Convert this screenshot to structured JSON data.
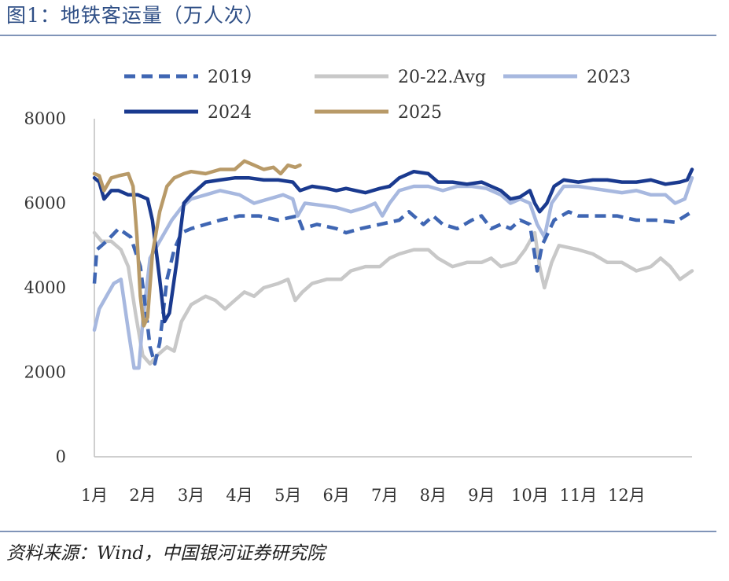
{
  "title": "图1：地铁客运量（万人次）",
  "source": "资料来源：Wind，中国银河证券研究院",
  "chart_data": {
    "type": "line",
    "title": "图1：地铁客运量（万人次）",
    "xlabel": "",
    "ylabel": "",
    "ylim": [
      0,
      8000
    ],
    "yticks": [
      0,
      2000,
      4000,
      6000,
      8000
    ],
    "xlim": [
      1,
      13.35
    ],
    "x_tick_labels": [
      "1月",
      "2月",
      "3月",
      "4月",
      "5月",
      "6月",
      "7月",
      "8月",
      "9月",
      "10月",
      "11月",
      "12月"
    ],
    "x_unit": "month position (1 = start of 1月)",
    "grid": false,
    "legend_position": "top",
    "series": [
      {
        "name": "2019",
        "color": "#3f66b3",
        "style": "dashed",
        "points": [
          [
            1.0,
            4100
          ],
          [
            1.05,
            4900
          ],
          [
            1.25,
            5100
          ],
          [
            1.5,
            5400
          ],
          [
            1.75,
            5200
          ],
          [
            1.95,
            4500
          ],
          [
            2.05,
            3600
          ],
          [
            2.15,
            2600
          ],
          [
            2.25,
            2200
          ],
          [
            2.35,
            2700
          ],
          [
            2.5,
            4200
          ],
          [
            2.65,
            4900
          ],
          [
            2.8,
            5300
          ],
          [
            3.0,
            5400
          ],
          [
            3.3,
            5500
          ],
          [
            3.6,
            5600
          ],
          [
            4.0,
            5700
          ],
          [
            4.4,
            5700
          ],
          [
            4.8,
            5600
          ],
          [
            5.2,
            5700
          ],
          [
            5.3,
            5400
          ],
          [
            5.6,
            5500
          ],
          [
            6.0,
            5400
          ],
          [
            6.2,
            5300
          ],
          [
            6.5,
            5400
          ],
          [
            6.9,
            5500
          ],
          [
            7.3,
            5600
          ],
          [
            7.5,
            5800
          ],
          [
            7.8,
            5500
          ],
          [
            8.0,
            5700
          ],
          [
            8.2,
            5500
          ],
          [
            8.5,
            5400
          ],
          [
            8.8,
            5600
          ],
          [
            9.0,
            5700
          ],
          [
            9.2,
            5400
          ],
          [
            9.4,
            5500
          ],
          [
            9.6,
            5400
          ],
          [
            9.8,
            5600
          ],
          [
            10.0,
            5500
          ],
          [
            10.15,
            4400
          ],
          [
            10.25,
            5000
          ],
          [
            10.5,
            5600
          ],
          [
            10.8,
            5800
          ],
          [
            11.0,
            5700
          ],
          [
            11.4,
            5700
          ],
          [
            11.8,
            5700
          ],
          [
            12.2,
            5600
          ],
          [
            12.6,
            5600
          ],
          [
            13.0,
            5550
          ],
          [
            13.35,
            5800
          ]
        ]
      },
      {
        "name": "20-22.Avg",
        "color": "#c8c8c8",
        "style": "solid",
        "points": [
          [
            1.0,
            5300
          ],
          [
            1.15,
            5100
          ],
          [
            1.35,
            5100
          ],
          [
            1.55,
            4900
          ],
          [
            1.7,
            4500
          ],
          [
            1.85,
            3400
          ],
          [
            2.0,
            2400
          ],
          [
            2.15,
            2200
          ],
          [
            2.3,
            2400
          ],
          [
            2.5,
            2600
          ],
          [
            2.65,
            2500
          ],
          [
            2.8,
            3200
          ],
          [
            3.0,
            3600
          ],
          [
            3.3,
            3800
          ],
          [
            3.5,
            3700
          ],
          [
            3.7,
            3500
          ],
          [
            3.9,
            3700
          ],
          [
            4.1,
            3900
          ],
          [
            4.3,
            3800
          ],
          [
            4.5,
            4000
          ],
          [
            4.8,
            4100
          ],
          [
            5.0,
            4200
          ],
          [
            5.15,
            3700
          ],
          [
            5.3,
            3900
          ],
          [
            5.5,
            4100
          ],
          [
            5.8,
            4200
          ],
          [
            6.1,
            4200
          ],
          [
            6.3,
            4400
          ],
          [
            6.6,
            4500
          ],
          [
            6.9,
            4500
          ],
          [
            7.1,
            4700
          ],
          [
            7.3,
            4800
          ],
          [
            7.6,
            4900
          ],
          [
            7.9,
            4900
          ],
          [
            8.1,
            4700
          ],
          [
            8.4,
            4500
          ],
          [
            8.7,
            4600
          ],
          [
            9.0,
            4600
          ],
          [
            9.2,
            4700
          ],
          [
            9.4,
            4500
          ],
          [
            9.7,
            4600
          ],
          [
            9.9,
            4900
          ],
          [
            10.0,
            5100
          ],
          [
            10.1,
            5300
          ],
          [
            10.2,
            4500
          ],
          [
            10.3,
            4000
          ],
          [
            10.45,
            4600
          ],
          [
            10.6,
            5000
          ],
          [
            11.0,
            4900
          ],
          [
            11.3,
            4800
          ],
          [
            11.6,
            4600
          ],
          [
            11.9,
            4600
          ],
          [
            12.2,
            4400
          ],
          [
            12.5,
            4500
          ],
          [
            12.7,
            4700
          ],
          [
            12.9,
            4500
          ],
          [
            13.1,
            4200
          ],
          [
            13.35,
            4400
          ]
        ]
      },
      {
        "name": "2023",
        "color": "#a7b8df",
        "style": "solid",
        "points": [
          [
            1.0,
            3000
          ],
          [
            1.1,
            3500
          ],
          [
            1.25,
            3800
          ],
          [
            1.4,
            4100
          ],
          [
            1.55,
            4200
          ],
          [
            1.7,
            3000
          ],
          [
            1.82,
            2100
          ],
          [
            1.92,
            2100
          ],
          [
            2.0,
            3200
          ],
          [
            2.15,
            4700
          ],
          [
            2.3,
            5000
          ],
          [
            2.45,
            5300
          ],
          [
            2.6,
            5600
          ],
          [
            2.8,
            5900
          ],
          [
            3.0,
            6100
          ],
          [
            3.3,
            6200
          ],
          [
            3.6,
            6300
          ],
          [
            4.0,
            6200
          ],
          [
            4.3,
            6000
          ],
          [
            4.6,
            6100
          ],
          [
            4.9,
            6200
          ],
          [
            5.1,
            6100
          ],
          [
            5.2,
            5700
          ],
          [
            5.35,
            6000
          ],
          [
            5.7,
            5950
          ],
          [
            6.0,
            5900
          ],
          [
            6.3,
            5800
          ],
          [
            6.6,
            5900
          ],
          [
            6.8,
            6000
          ],
          [
            6.95,
            5700
          ],
          [
            7.1,
            6000
          ],
          [
            7.3,
            6300
          ],
          [
            7.6,
            6400
          ],
          [
            7.9,
            6400
          ],
          [
            8.2,
            6300
          ],
          [
            8.5,
            6400
          ],
          [
            8.8,
            6400
          ],
          [
            9.1,
            6350
          ],
          [
            9.4,
            6200
          ],
          [
            9.6,
            6000
          ],
          [
            9.8,
            6100
          ],
          [
            10.0,
            6000
          ],
          [
            10.15,
            5500
          ],
          [
            10.3,
            5200
          ],
          [
            10.45,
            6000
          ],
          [
            10.7,
            6400
          ],
          [
            11.0,
            6400
          ],
          [
            11.3,
            6350
          ],
          [
            11.6,
            6300
          ],
          [
            11.9,
            6250
          ],
          [
            12.2,
            6300
          ],
          [
            12.5,
            6200
          ],
          [
            12.8,
            6200
          ],
          [
            13.0,
            6000
          ],
          [
            13.2,
            6100
          ],
          [
            13.35,
            6600
          ]
        ]
      },
      {
        "name": "2024",
        "color": "#1a3a8f",
        "style": "solid",
        "points": [
          [
            1.0,
            6600
          ],
          [
            1.1,
            6500
          ],
          [
            1.2,
            6100
          ],
          [
            1.35,
            6300
          ],
          [
            1.5,
            6300
          ],
          [
            1.7,
            6200
          ],
          [
            1.9,
            6200
          ],
          [
            2.1,
            6100
          ],
          [
            2.2,
            5600
          ],
          [
            2.35,
            4200
          ],
          [
            2.45,
            3200
          ],
          [
            2.55,
            3400
          ],
          [
            2.7,
            4600
          ],
          [
            2.85,
            6000
          ],
          [
            3.0,
            6200
          ],
          [
            3.3,
            6500
          ],
          [
            3.6,
            6550
          ],
          [
            3.9,
            6600
          ],
          [
            4.2,
            6600
          ],
          [
            4.5,
            6550
          ],
          [
            4.8,
            6550
          ],
          [
            5.1,
            6500
          ],
          [
            5.25,
            6300
          ],
          [
            5.5,
            6400
          ],
          [
            5.8,
            6350
          ],
          [
            6.0,
            6300
          ],
          [
            6.2,
            6350
          ],
          [
            6.4,
            6300
          ],
          [
            6.6,
            6250
          ],
          [
            6.9,
            6350
          ],
          [
            7.1,
            6400
          ],
          [
            7.3,
            6600
          ],
          [
            7.6,
            6750
          ],
          [
            7.9,
            6700
          ],
          [
            8.1,
            6500
          ],
          [
            8.4,
            6500
          ],
          [
            8.7,
            6450
          ],
          [
            9.0,
            6500
          ],
          [
            9.2,
            6400
          ],
          [
            9.4,
            6300
          ],
          [
            9.6,
            6100
          ],
          [
            9.8,
            6150
          ],
          [
            10.0,
            6300
          ],
          [
            10.1,
            6000
          ],
          [
            10.2,
            5800
          ],
          [
            10.35,
            6000
          ],
          [
            10.5,
            6400
          ],
          [
            10.7,
            6550
          ],
          [
            11.0,
            6500
          ],
          [
            11.3,
            6550
          ],
          [
            11.6,
            6550
          ],
          [
            11.9,
            6500
          ],
          [
            12.2,
            6500
          ],
          [
            12.5,
            6550
          ],
          [
            12.8,
            6450
          ],
          [
            13.1,
            6500
          ],
          [
            13.25,
            6550
          ],
          [
            13.35,
            6800
          ]
        ]
      },
      {
        "name": "2025",
        "color": "#b89a68",
        "style": "solid",
        "points": [
          [
            1.0,
            6700
          ],
          [
            1.1,
            6650
          ],
          [
            1.2,
            6300
          ],
          [
            1.35,
            6600
          ],
          [
            1.5,
            6650
          ],
          [
            1.7,
            6700
          ],
          [
            1.8,
            6400
          ],
          [
            1.88,
            5200
          ],
          [
            1.95,
            3800
          ],
          [
            2.02,
            3100
          ],
          [
            2.1,
            3300
          ],
          [
            2.2,
            4800
          ],
          [
            2.35,
            5800
          ],
          [
            2.5,
            6400
          ],
          [
            2.65,
            6600
          ],
          [
            2.85,
            6700
          ],
          [
            3.0,
            6750
          ],
          [
            3.3,
            6700
          ],
          [
            3.6,
            6800
          ],
          [
            3.9,
            6800
          ],
          [
            4.1,
            7000
          ],
          [
            4.3,
            6900
          ],
          [
            4.5,
            6800
          ],
          [
            4.7,
            6850
          ],
          [
            4.85,
            6700
          ],
          [
            5.0,
            6900
          ],
          [
            5.15,
            6850
          ],
          [
            5.25,
            6900
          ]
        ]
      }
    ]
  }
}
